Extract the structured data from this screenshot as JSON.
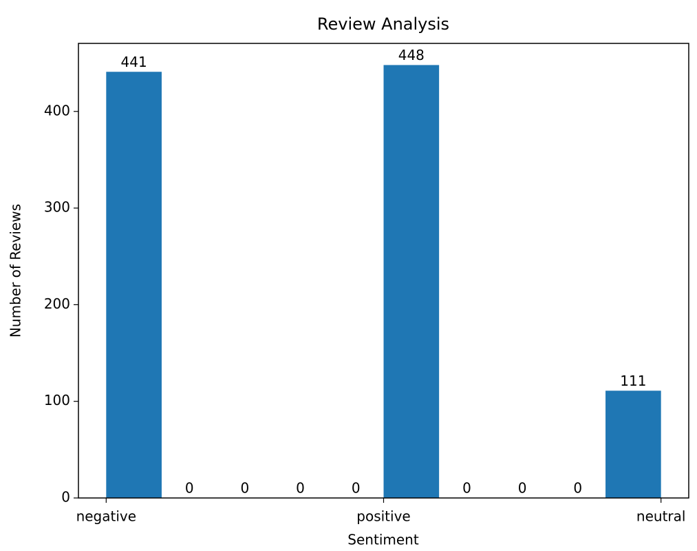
{
  "chart_data": {
    "type": "histogram",
    "title": "Review Analysis",
    "x_label": "Sentiment",
    "y_label": "Number of Reviews",
    "bins": [
      0,
      0.2,
      0.4,
      0.6,
      0.8,
      1.0,
      1.2,
      1.4,
      1.6,
      1.8,
      2.0
    ],
    "counts": [
      441,
      0,
      0,
      0,
      0,
      448,
      0,
      0,
      0,
      111
    ],
    "color": "#1f77b4",
    "xlim": [
      -0.1,
      2.1
    ],
    "xticks": [
      {
        "value": 0,
        "label": "negative"
      },
      {
        "value": 1,
        "label": "positive"
      },
      {
        "value": 2,
        "label": "neutral"
      }
    ],
    "ylim": [
      0,
      470.4
    ],
    "yticks": [
      0,
      100,
      200,
      300,
      400
    ],
    "grid": false
  }
}
